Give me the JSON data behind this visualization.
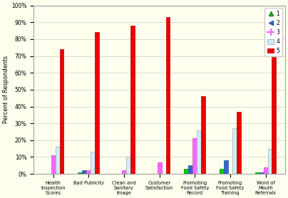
{
  "categories": [
    "Health\nInspection\nScores",
    "Bad Publicity",
    "Clean and\nSanitary\nImage",
    "Customer\nSatisfaction",
    "Promoting\nFood Safety\nRecord",
    "Promoting\nFood Safety\nTraining",
    "Word of\nMouth\nReferrals"
  ],
  "series": {
    "1": [
      0,
      1,
      0,
      0,
      3,
      3,
      1
    ],
    "2": [
      0,
      2,
      0,
      0,
      5,
      8,
      1
    ],
    "3": [
      11,
      2,
      2,
      7,
      21,
      0,
      4
    ],
    "4": [
      16,
      13,
      10,
      0,
      26,
      27,
      15
    ],
    "5": [
      74,
      84,
      88,
      93,
      46,
      37,
      81
    ]
  },
  "colors": {
    "1": "#00cc00",
    "2": "#3366cc",
    "3": "#ff66ff",
    "4": "#cceeff",
    "5": "#ee0000"
  },
  "ylabel": "Percent of Respondents",
  "ylim": [
    0,
    100
  ],
  "yticks": [
    0,
    10,
    20,
    30,
    40,
    50,
    60,
    70,
    80,
    90,
    100
  ],
  "ytick_labels": [
    "0%",
    "10%",
    "20%",
    "30%",
    "40%",
    "50%",
    "60%",
    "70%",
    "80%",
    "90%",
    "100%"
  ],
  "background_color": "#ffffee",
  "bar_width": 0.12,
  "figsize": [
    4.04,
    2.78
  ],
  "dpi": 100
}
